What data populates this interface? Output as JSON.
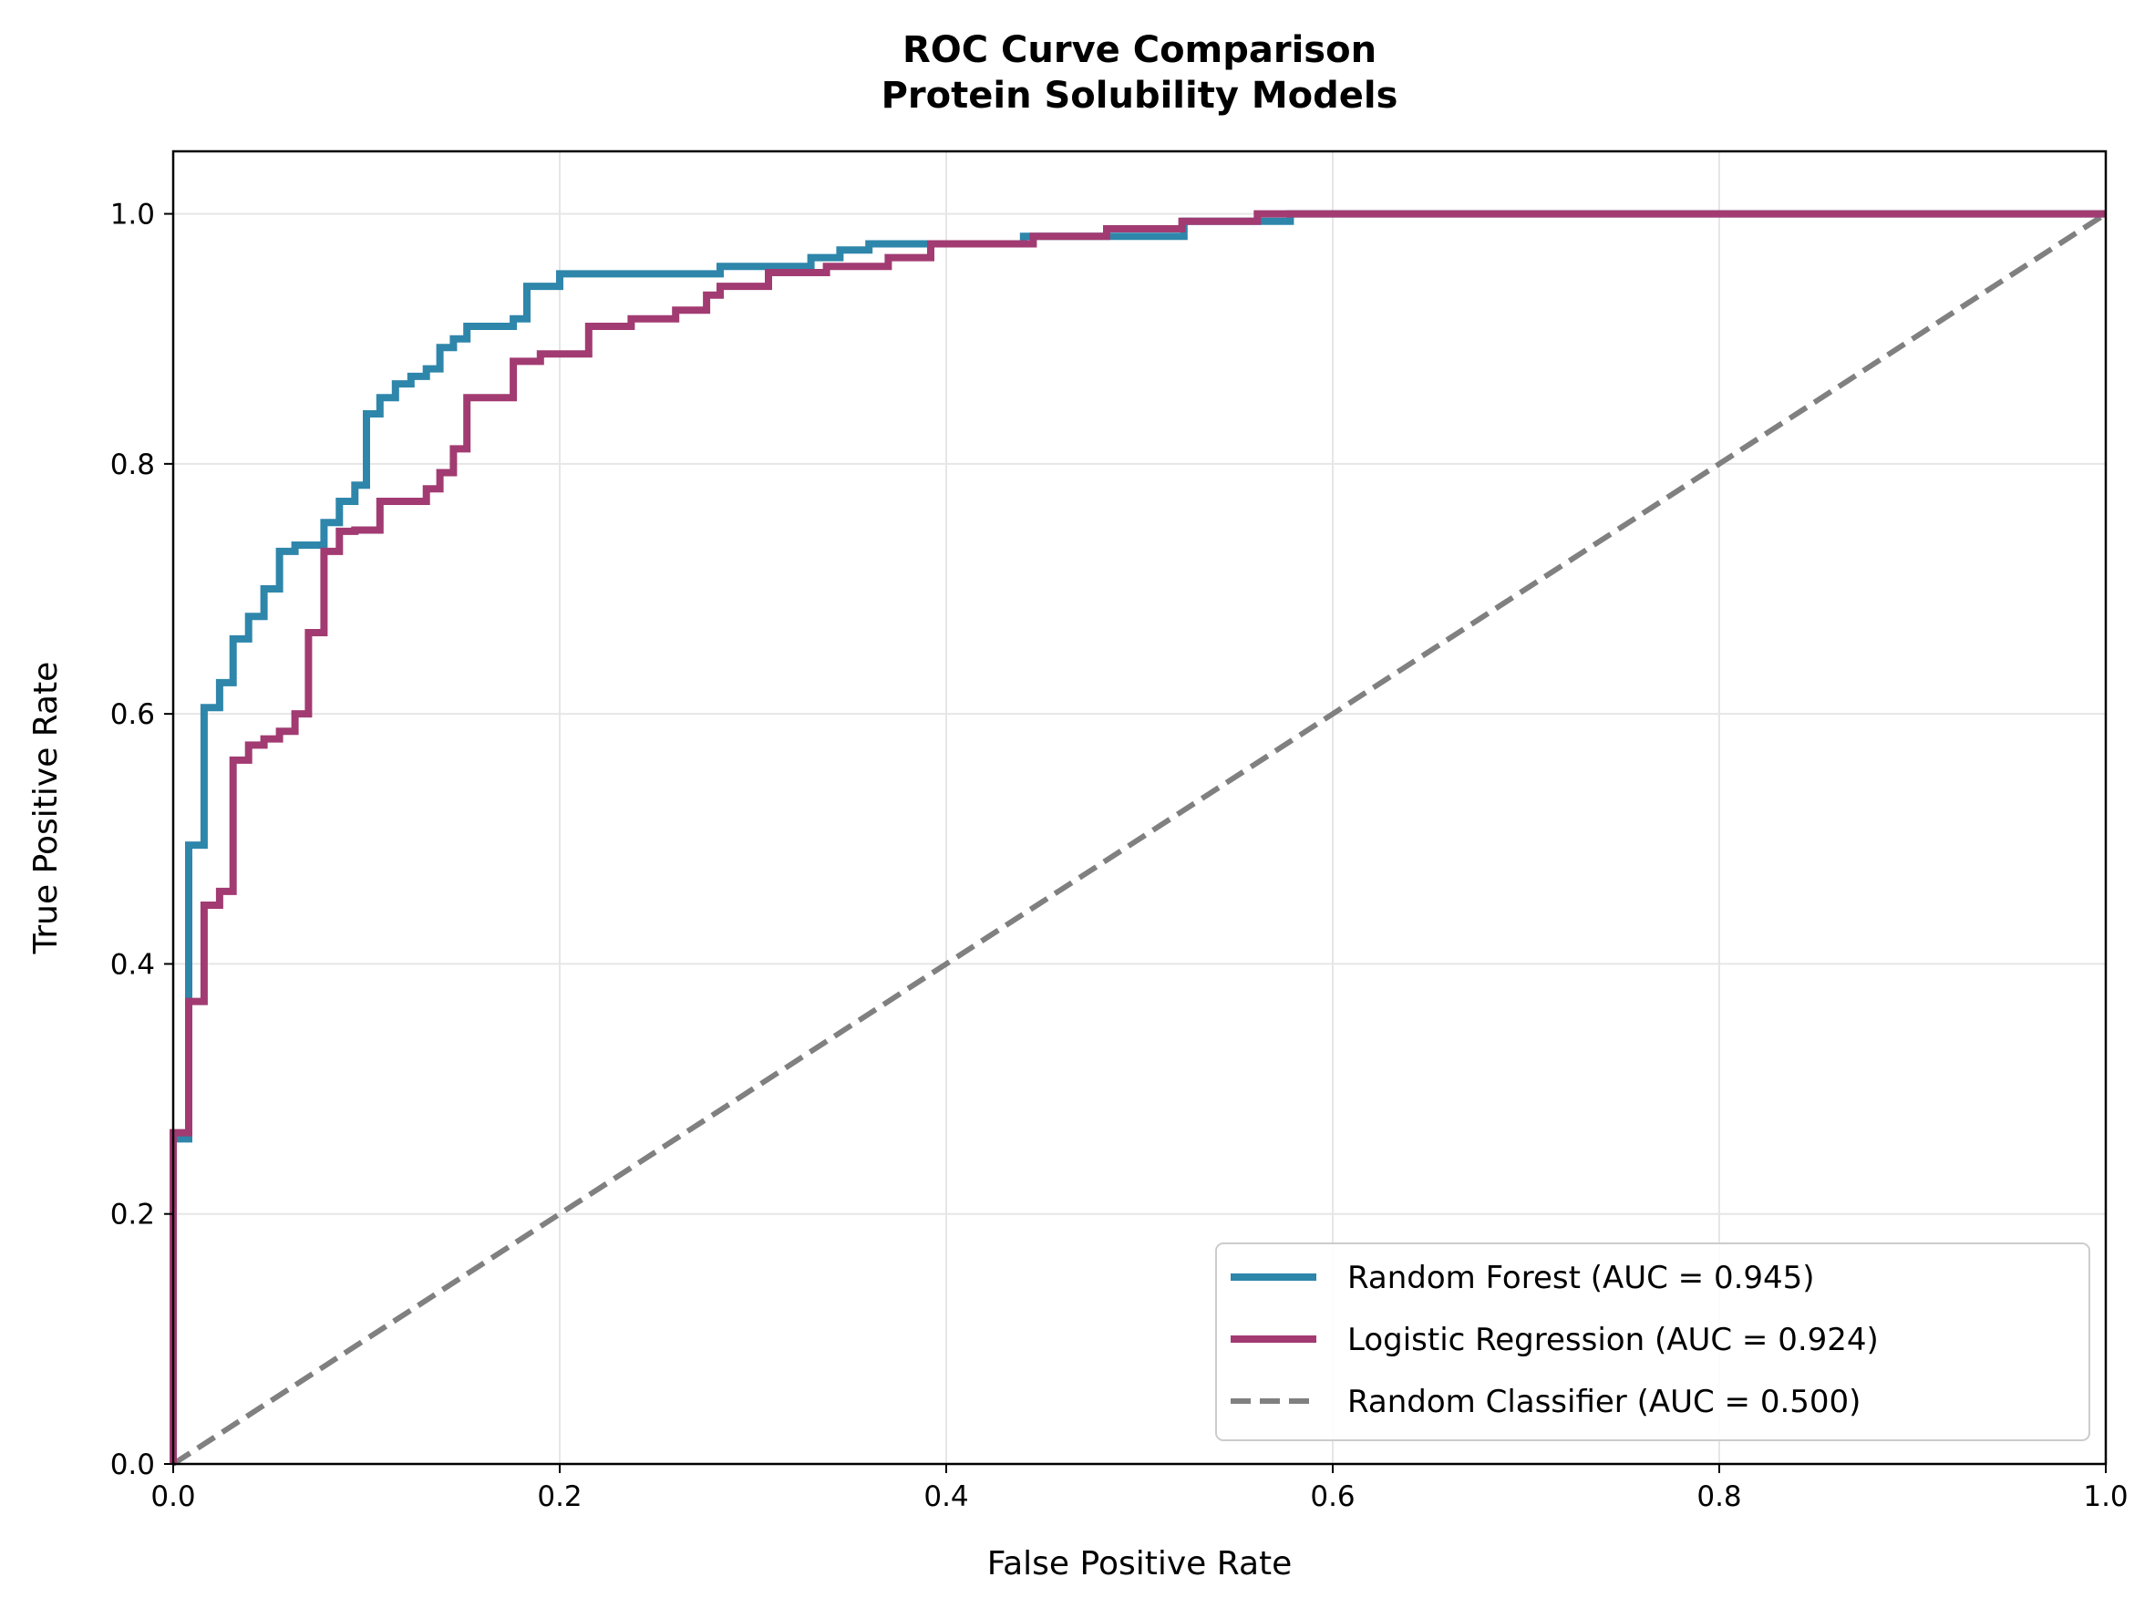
{
  "chart_data": {
    "type": "line",
    "title": "ROC Curve Comparison",
    "subtitle": "Protein Solubility Models",
    "xlabel": "False Positive Rate",
    "ylabel": "True Positive Rate",
    "xlim": [
      0.0,
      1.0
    ],
    "ylim": [
      0.0,
      1.05
    ],
    "grid": true,
    "legend_position": "lower-right",
    "x_ticks": [
      "0.0",
      "0.2",
      "0.4",
      "0.6",
      "0.8",
      "1.0"
    ],
    "y_ticks": [
      "0.0",
      "0.2",
      "0.4",
      "0.6",
      "0.8",
      "1.0"
    ],
    "series": [
      {
        "name": "Random Forest (AUC = 0.945)",
        "color": "#2e86ab",
        "style": "step",
        "points": [
          [
            0.0,
            0.0
          ],
          [
            0.0,
            0.26
          ],
          [
            0.008,
            0.26
          ],
          [
            0.008,
            0.495
          ],
          [
            0.016,
            0.495
          ],
          [
            0.016,
            0.605
          ],
          [
            0.024,
            0.605
          ],
          [
            0.024,
            0.625
          ],
          [
            0.031,
            0.625
          ],
          [
            0.031,
            0.66
          ],
          [
            0.039,
            0.66
          ],
          [
            0.039,
            0.678
          ],
          [
            0.047,
            0.678
          ],
          [
            0.047,
            0.7
          ],
          [
            0.055,
            0.7
          ],
          [
            0.055,
            0.73
          ],
          [
            0.063,
            0.73
          ],
          [
            0.063,
            0.735
          ],
          [
            0.078,
            0.735
          ],
          [
            0.078,
            0.753
          ],
          [
            0.086,
            0.753
          ],
          [
            0.086,
            0.77
          ],
          [
            0.094,
            0.77
          ],
          [
            0.094,
            0.783
          ],
          [
            0.1,
            0.783
          ],
          [
            0.1,
            0.84
          ],
          [
            0.107,
            0.84
          ],
          [
            0.107,
            0.853
          ],
          [
            0.115,
            0.853
          ],
          [
            0.115,
            0.864
          ],
          [
            0.123,
            0.864
          ],
          [
            0.123,
            0.87
          ],
          [
            0.131,
            0.87
          ],
          [
            0.131,
            0.876
          ],
          [
            0.138,
            0.876
          ],
          [
            0.138,
            0.893
          ],
          [
            0.145,
            0.893
          ],
          [
            0.145,
            0.9
          ],
          [
            0.152,
            0.9
          ],
          [
            0.152,
            0.91
          ],
          [
            0.176,
            0.91
          ],
          [
            0.176,
            0.916
          ],
          [
            0.183,
            0.916
          ],
          [
            0.183,
            0.942
          ],
          [
            0.2,
            0.942
          ],
          [
            0.2,
            0.952
          ],
          [
            0.283,
            0.952
          ],
          [
            0.283,
            0.958
          ],
          [
            0.33,
            0.958
          ],
          [
            0.33,
            0.965
          ],
          [
            0.345,
            0.965
          ],
          [
            0.345,
            0.971
          ],
          [
            0.36,
            0.971
          ],
          [
            0.36,
            0.976
          ],
          [
            0.44,
            0.976
          ],
          [
            0.44,
            0.982
          ],
          [
            0.523,
            0.982
          ],
          [
            0.523,
            0.994
          ],
          [
            0.578,
            0.994
          ],
          [
            0.578,
            1.0
          ],
          [
            1.0,
            1.0
          ]
        ]
      },
      {
        "name": "Logistic Regression (AUC = 0.924)",
        "color": "#a23b72",
        "style": "step",
        "points": [
          [
            0.0,
            0.0
          ],
          [
            0.0,
            0.265
          ],
          [
            0.008,
            0.265
          ],
          [
            0.008,
            0.37
          ],
          [
            0.016,
            0.37
          ],
          [
            0.016,
            0.447
          ],
          [
            0.024,
            0.447
          ],
          [
            0.024,
            0.458
          ],
          [
            0.031,
            0.458
          ],
          [
            0.031,
            0.563
          ],
          [
            0.039,
            0.563
          ],
          [
            0.039,
            0.575
          ],
          [
            0.047,
            0.575
          ],
          [
            0.047,
            0.58
          ],
          [
            0.055,
            0.58
          ],
          [
            0.055,
            0.586
          ],
          [
            0.063,
            0.586
          ],
          [
            0.063,
            0.6
          ],
          [
            0.07,
            0.6
          ],
          [
            0.07,
            0.665
          ],
          [
            0.078,
            0.665
          ],
          [
            0.078,
            0.73
          ],
          [
            0.086,
            0.73
          ],
          [
            0.086,
            0.746
          ],
          [
            0.094,
            0.746
          ],
          [
            0.094,
            0.747
          ],
          [
            0.107,
            0.747
          ],
          [
            0.107,
            0.77
          ],
          [
            0.131,
            0.77
          ],
          [
            0.131,
            0.78
          ],
          [
            0.138,
            0.78
          ],
          [
            0.138,
            0.793
          ],
          [
            0.145,
            0.793
          ],
          [
            0.145,
            0.812
          ],
          [
            0.152,
            0.812
          ],
          [
            0.152,
            0.853
          ],
          [
            0.176,
            0.853
          ],
          [
            0.176,
            0.882
          ],
          [
            0.19,
            0.882
          ],
          [
            0.19,
            0.888
          ],
          [
            0.215,
            0.888
          ],
          [
            0.215,
            0.91
          ],
          [
            0.237,
            0.91
          ],
          [
            0.237,
            0.916
          ],
          [
            0.26,
            0.916
          ],
          [
            0.26,
            0.923
          ],
          [
            0.276,
            0.923
          ],
          [
            0.276,
            0.935
          ],
          [
            0.283,
            0.935
          ],
          [
            0.283,
            0.942
          ],
          [
            0.308,
            0.942
          ],
          [
            0.308,
            0.953
          ],
          [
            0.338,
            0.953
          ],
          [
            0.338,
            0.958
          ],
          [
            0.37,
            0.958
          ],
          [
            0.37,
            0.965
          ],
          [
            0.392,
            0.965
          ],
          [
            0.392,
            0.976
          ],
          [
            0.445,
            0.976
          ],
          [
            0.445,
            0.982
          ],
          [
            0.483,
            0.982
          ],
          [
            0.483,
            0.988
          ],
          [
            0.522,
            0.988
          ],
          [
            0.522,
            0.994
          ],
          [
            0.561,
            0.994
          ],
          [
            0.561,
            1.0
          ],
          [
            1.0,
            1.0
          ]
        ]
      },
      {
        "name": "Random Classifier (AUC = 0.500)",
        "color": "#808080",
        "style": "dashed",
        "points": [
          [
            0.0,
            0.0
          ],
          [
            1.0,
            1.0
          ]
        ]
      }
    ]
  }
}
